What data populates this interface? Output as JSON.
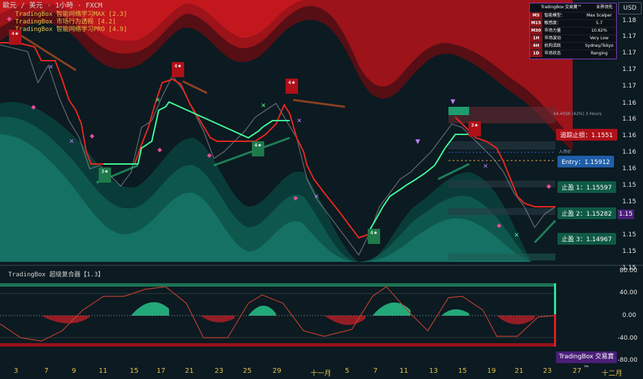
{
  "header": {
    "symbol_line": "歐元 / 美元 · 1小時 · FXCM",
    "indicators": [
      "TradingBox  智能网络学习MAX [2.3]",
      "TradingBox  市场行为透视 [4.2]",
      "TradingBox  智能网络学习PRO [4.9]"
    ],
    "currency_button": "USD"
  },
  "price_axis": [
    "1.18",
    "1.17",
    "1.17",
    "1.17",
    "1.17",
    "1.16",
    "1.16",
    "1.16",
    "1.16",
    "1.16",
    "1.15",
    "1.15",
    "1.15",
    "1.15",
    "1.15"
  ],
  "current_price": "1.15",
  "time_axis": [
    "3",
    "7",
    "9",
    "11",
    "15",
    "17",
    "21",
    "23",
    "25",
    "29",
    "十一月",
    "5",
    "7",
    "11",
    "13",
    "15",
    "19",
    "21",
    "23",
    "25",
    "27",
    "十二月"
  ],
  "labels": {
    "trailing_stop": "追踪止损：1.1551",
    "entry": "Entry：1.15912",
    "tp1": "止盈 1：1.15597",
    "tp2": "止盈 2：1.15282",
    "tp3": "止盈 3：1.14967",
    "entry_small": "入场价",
    "zone_text": "64.40SK (42%) 3 Hours"
  },
  "info_table": {
    "title": "TradingBox 交易寶™",
    "title_right": "业界领先",
    "rows": [
      {
        "tf": "M5",
        "name": "智能模型：",
        "value": "Max Scalper"
      },
      {
        "tf": "M15",
        "name": "敏感度：",
        "value": "5.7"
      },
      {
        "tf": "M30",
        "name": "市场力量",
        "value": "10.62%"
      },
      {
        "tf": "1H",
        "name": "市场波动",
        "value": "Very Low"
      },
      {
        "tf": "4H",
        "name": "机构活跃",
        "value": "Sydney/Tokyo"
      },
      {
        "tf": "1D",
        "name": "市场状态",
        "value": "Ranging"
      }
    ]
  },
  "signals": [
    {
      "text": "4★",
      "kind": "sell"
    },
    {
      "text": "4★",
      "kind": "sell"
    },
    {
      "text": "4★",
      "kind": "sell"
    },
    {
      "text": "3★",
      "kind": "buy"
    },
    {
      "text": "4★",
      "kind": "buy"
    },
    {
      "text": "4★",
      "kind": "buy"
    },
    {
      "text": "3★",
      "kind": "sell"
    }
  ],
  "subpanel": {
    "title": "TradingBox   超级复合器【1.3】",
    "axis": [
      "80.00",
      "40.00",
      "0.00",
      "-40.00",
      "-80.00"
    ]
  },
  "brand": "TradingBox 交易寶™",
  "colors": {
    "bg": "#0c1a21",
    "bull": "#2ee6a0",
    "bear": "#e01a1a",
    "band_red": "#8b1118",
    "band_teal": "#0f5a50"
  }
}
